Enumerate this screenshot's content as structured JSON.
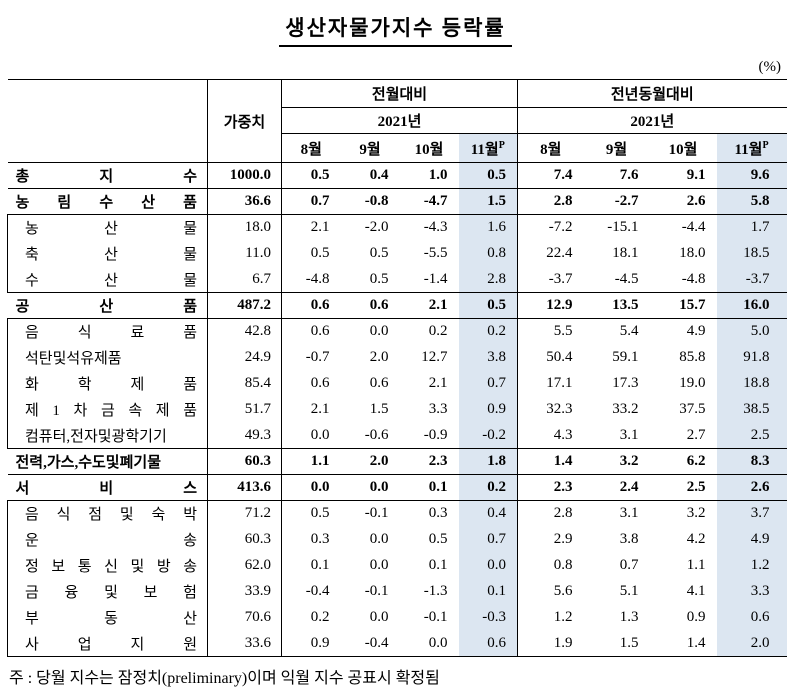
{
  "page": {
    "title": "생산자물가지수  등락률",
    "unit_label": "(%)",
    "footnote": "주 : 당월 지수는 잠정치(preliminary)이며 익월 지수 공표시 확정됨"
  },
  "colors": {
    "highlight": "#dce6f1"
  },
  "table": {
    "corner_label": "",
    "weight_header": "가중치",
    "mom_header": "전월대비",
    "yoy_header": "전년동월대비",
    "year_header": "2021년",
    "months": [
      "8월",
      "9월",
      "10월",
      "11월"
    ],
    "prelim_mark": "P",
    "rows": [
      {
        "label": "총 지 수",
        "level": "major",
        "weight": "1000.0",
        "mom": [
          "0.5",
          "0.4",
          "1.0",
          "0.5"
        ],
        "yoy": [
          "7.4",
          "7.6",
          "9.1",
          "9.6"
        ]
      },
      {
        "label": "농 림 수 산 품",
        "level": "major",
        "weight": "36.6",
        "mom": [
          "0.7",
          "-0.8",
          "-4.7",
          "1.5"
        ],
        "yoy": [
          "2.8",
          "-2.7",
          "2.6",
          "5.8"
        ]
      },
      {
        "label": "농 산 물",
        "level": "sub",
        "weight": "18.0",
        "mom": [
          "2.1",
          "-2.0",
          "-4.3",
          "1.6"
        ],
        "yoy": [
          "-7.2",
          "-15.1",
          "-4.4",
          "1.7"
        ]
      },
      {
        "label": "축 산 물",
        "level": "sub",
        "weight": "11.0",
        "mom": [
          "0.5",
          "0.5",
          "-5.5",
          "0.8"
        ],
        "yoy": [
          "22.4",
          "18.1",
          "18.0",
          "18.5"
        ]
      },
      {
        "label": "수 산 물",
        "level": "sub",
        "weight": "6.7",
        "mom": [
          "-4.8",
          "0.5",
          "-1.4",
          "2.8"
        ],
        "yoy": [
          "-3.7",
          "-4.5",
          "-4.8",
          "-3.7"
        ]
      },
      {
        "label": "공 산 품",
        "level": "major",
        "weight": "487.2",
        "mom": [
          "0.6",
          "0.6",
          "2.1",
          "0.5"
        ],
        "yoy": [
          "12.9",
          "13.5",
          "15.7",
          "16.0"
        ]
      },
      {
        "label": "음 식 료 품",
        "level": "sub",
        "weight": "42.8",
        "mom": [
          "0.6",
          "0.0",
          "0.2",
          "0.2"
        ],
        "yoy": [
          "5.5",
          "5.4",
          "4.9",
          "5.0"
        ]
      },
      {
        "label": "석탄및석유제품",
        "level": "sub",
        "weight": "24.9",
        "mom": [
          "-0.7",
          "2.0",
          "12.7",
          "3.8"
        ],
        "yoy": [
          "50.4",
          "59.1",
          "85.8",
          "91.8"
        ]
      },
      {
        "label": "화 학 제 품",
        "level": "sub",
        "weight": "85.4",
        "mom": [
          "0.6",
          "0.6",
          "2.1",
          "0.7"
        ],
        "yoy": [
          "17.1",
          "17.3",
          "19.0",
          "18.8"
        ]
      },
      {
        "label": "제 1 차 금 속 제 품",
        "level": "sub",
        "weight": "51.7",
        "mom": [
          "2.1",
          "1.5",
          "3.3",
          "0.9"
        ],
        "yoy": [
          "32.3",
          "33.2",
          "37.5",
          "38.5"
        ]
      },
      {
        "label": "컴퓨터,전자및광학기기",
        "level": "sub",
        "weight": "49.3",
        "mom": [
          "0.0",
          "-0.6",
          "-0.9",
          "-0.2"
        ],
        "yoy": [
          "4.3",
          "3.1",
          "2.7",
          "2.5"
        ]
      },
      {
        "label": "전력,가스,수도및폐기물",
        "level": "major",
        "weight": "60.3",
        "mom": [
          "1.1",
          "2.0",
          "2.3",
          "1.8"
        ],
        "yoy": [
          "1.4",
          "3.2",
          "6.2",
          "8.3"
        ]
      },
      {
        "label": "서 비 스",
        "level": "major",
        "weight": "413.6",
        "mom": [
          "0.0",
          "0.0",
          "0.1",
          "0.2"
        ],
        "yoy": [
          "2.3",
          "2.4",
          "2.5",
          "2.6"
        ]
      },
      {
        "label": "음 식 점 및 숙 박",
        "level": "sub",
        "weight": "71.2",
        "mom": [
          "0.5",
          "-0.1",
          "0.3",
          "0.4"
        ],
        "yoy": [
          "2.8",
          "3.1",
          "3.2",
          "3.7"
        ]
      },
      {
        "label": "운 송",
        "level": "sub",
        "weight": "60.3",
        "mom": [
          "0.3",
          "0.0",
          "0.5",
          "0.7"
        ],
        "yoy": [
          "2.9",
          "3.8",
          "4.2",
          "4.9"
        ]
      },
      {
        "label": "정 보 통 신 및 방 송",
        "level": "sub",
        "weight": "62.0",
        "mom": [
          "0.1",
          "0.0",
          "0.1",
          "0.0"
        ],
        "yoy": [
          "0.8",
          "0.7",
          "1.1",
          "1.2"
        ]
      },
      {
        "label": "금 융 및 보 험",
        "level": "sub",
        "weight": "33.9",
        "mom": [
          "-0.4",
          "-0.1",
          "-1.3",
          "0.1"
        ],
        "yoy": [
          "5.6",
          "5.1",
          "4.1",
          "3.3"
        ]
      },
      {
        "label": "부 동 산",
        "level": "sub",
        "weight": "70.6",
        "mom": [
          "0.2",
          "0.0",
          "-0.1",
          "-0.3"
        ],
        "yoy": [
          "1.2",
          "1.3",
          "0.9",
          "0.6"
        ]
      },
      {
        "label": "사 업 지 원",
        "level": "sub",
        "weight": "33.6",
        "mom": [
          "0.9",
          "-0.4",
          "0.0",
          "0.6"
        ],
        "yoy": [
          "1.9",
          "1.5",
          "1.4",
          "2.0"
        ]
      }
    ]
  }
}
